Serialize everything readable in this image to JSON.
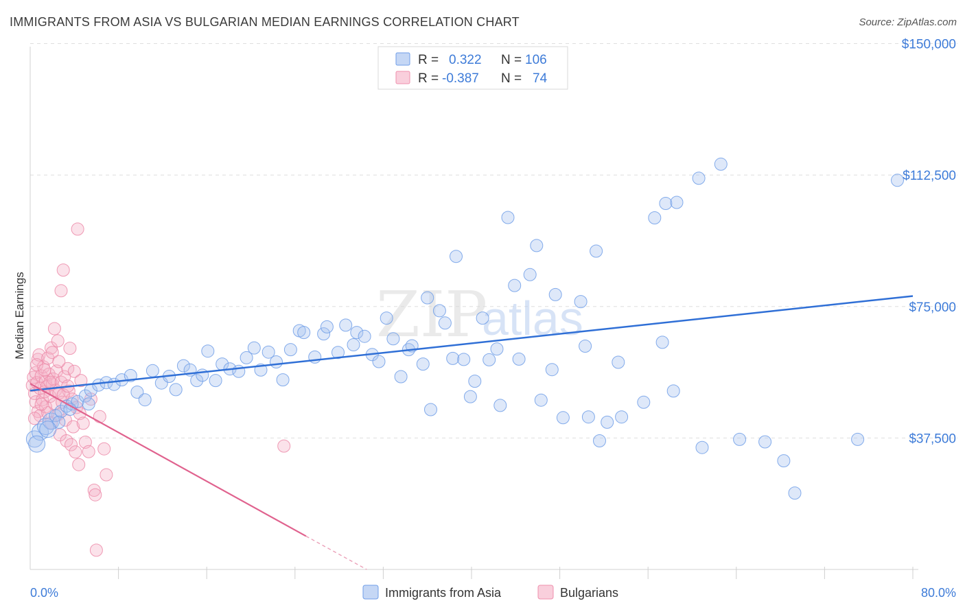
{
  "title": "IMMIGRANTS FROM ASIA VS BULGARIAN MEDIAN EARNINGS CORRELATION CHART",
  "source": "Source: ZipAtlas.com",
  "watermark": {
    "zip": "ZIP",
    "atlas": "atlas"
  },
  "legend": {
    "r_label": "R =",
    "n_label": "N =",
    "rows": [
      {
        "r": "0.322",
        "n": "106",
        "color": "#6f9ee8"
      },
      {
        "r": "-0.387",
        "n": "74",
        "color": "#ef8fac"
      }
    ]
  },
  "bottom_legend": [
    "Immigrants from Asia",
    "Bulgarians"
  ],
  "chart_data": {
    "type": "scatter",
    "ylabel": "Median Earnings",
    "xlabel": "",
    "x_tick_labels": {
      "min": "0.0%",
      "max": "80.0%"
    },
    "xlim": [
      0,
      80
    ],
    "ylim": [
      0,
      155000
    ],
    "y_ticks": [
      {
        "value": 37500,
        "label": "$37,500"
      },
      {
        "value": 75000,
        "label": "$75,000"
      },
      {
        "value": 112500,
        "label": "$112,500"
      },
      {
        "value": 150000,
        "label": "$150,000"
      }
    ],
    "grid": true,
    "series": [
      {
        "name": "Immigrants from Asia",
        "color": "#6f9ee8",
        "trend": {
          "x": [
            0,
            80
          ],
          "y": [
            51000,
            78000
          ]
        },
        "points": [
          [
            0.4,
            37200
          ],
          [
            0.9,
            39200
          ],
          [
            1.4,
            40800
          ],
          [
            1.9,
            42300
          ],
          [
            2.3,
            43900
          ],
          [
            2.8,
            45100
          ],
          [
            3.3,
            46600
          ],
          [
            3.8,
            47200
          ],
          [
            4.3,
            47900
          ],
          [
            5.0,
            49500
          ],
          [
            5.5,
            51100
          ],
          [
            6.2,
            52600
          ],
          [
            6.9,
            53300
          ],
          [
            7.6,
            52800
          ],
          [
            8.3,
            54100
          ],
          [
            9.1,
            55300
          ],
          [
            9.7,
            50600
          ],
          [
            10.4,
            48400
          ],
          [
            11.1,
            56700
          ],
          [
            11.9,
            53200
          ],
          [
            12.6,
            55100
          ],
          [
            13.2,
            51300
          ],
          [
            13.9,
            58100
          ],
          [
            14.5,
            56900
          ],
          [
            15.1,
            53900
          ],
          [
            15.6,
            55400
          ],
          [
            16.1,
            62300
          ],
          [
            16.8,
            53900
          ],
          [
            17.4,
            58600
          ],
          [
            18.1,
            57200
          ],
          [
            18.9,
            56500
          ],
          [
            19.6,
            60400
          ],
          [
            20.3,
            63200
          ],
          [
            20.9,
            56900
          ],
          [
            21.6,
            62000
          ],
          [
            22.3,
            59200
          ],
          [
            22.9,
            54100
          ],
          [
            23.6,
            62700
          ],
          [
            24.4,
            68100
          ],
          [
            24.8,
            67600
          ],
          [
            25.8,
            60600
          ],
          [
            26.6,
            67200
          ],
          [
            26.9,
            69200
          ],
          [
            27.9,
            61900
          ],
          [
            28.6,
            69700
          ],
          [
            29.3,
            64100
          ],
          [
            29.6,
            67600
          ],
          [
            30.3,
            66500
          ],
          [
            31.0,
            61300
          ],
          [
            31.6,
            59300
          ],
          [
            32.3,
            71700
          ],
          [
            32.9,
            65800
          ],
          [
            33.6,
            55000
          ],
          [
            34.3,
            62700
          ],
          [
            34.6,
            63800
          ],
          [
            35.6,
            58600
          ],
          [
            36.0,
            77500
          ],
          [
            36.3,
            45600
          ],
          [
            37.1,
            73800
          ],
          [
            37.6,
            70300
          ],
          [
            38.3,
            60200
          ],
          [
            38.6,
            89300
          ],
          [
            39.3,
            59900
          ],
          [
            39.9,
            49300
          ],
          [
            40.3,
            53700
          ],
          [
            41.0,
            71700
          ],
          [
            41.6,
            59800
          ],
          [
            42.3,
            62900
          ],
          [
            42.6,
            46800
          ],
          [
            43.3,
            100400
          ],
          [
            43.9,
            81000
          ],
          [
            44.3,
            60000
          ],
          [
            45.3,
            84100
          ],
          [
            45.9,
            92400
          ],
          [
            46.3,
            48300
          ],
          [
            47.3,
            57000
          ],
          [
            47.6,
            78400
          ],
          [
            48.3,
            43300
          ],
          [
            49.9,
            76400
          ],
          [
            50.3,
            63700
          ],
          [
            50.6,
            43500
          ],
          [
            51.3,
            90800
          ],
          [
            51.6,
            36700
          ],
          [
            52.3,
            42000
          ],
          [
            53.3,
            59100
          ],
          [
            53.6,
            43500
          ],
          [
            55.6,
            47700
          ],
          [
            56.6,
            100300
          ],
          [
            57.3,
            64800
          ],
          [
            57.6,
            104400
          ],
          [
            58.6,
            104700
          ],
          [
            58.3,
            50900
          ],
          [
            60.6,
            111600
          ],
          [
            60.9,
            34800
          ],
          [
            62.6,
            115600
          ],
          [
            64.3,
            37100
          ],
          [
            66.6,
            36400
          ],
          [
            68.3,
            31000
          ],
          [
            69.3,
            21800
          ],
          [
            78.6,
            111000
          ],
          [
            0.6,
            35800
          ],
          [
            2.6,
            42000
          ],
          [
            3.6,
            45700
          ],
          [
            5.3,
            47200
          ],
          [
            75.0,
            37100
          ],
          [
            1.6,
            40000
          ]
        ]
      },
      {
        "name": "Bulgarians",
        "color": "#ef8fac",
        "trend": {
          "x": [
            0,
            25
          ],
          "y": [
            53000,
            9500
          ]
        },
        "trend_dashed": {
          "x": [
            25,
            30.5
          ],
          "y": [
            9500,
            0
          ]
        },
        "points": [
          [
            0.2,
            52500
          ],
          [
            0.3,
            54800
          ],
          [
            0.4,
            50200
          ],
          [
            0.5,
            56100
          ],
          [
            0.5,
            47800
          ],
          [
            0.6,
            53300
          ],
          [
            0.7,
            59900
          ],
          [
            0.7,
            45100
          ],
          [
            0.8,
            61200
          ],
          [
            0.9,
            51600
          ],
          [
            0.9,
            43900
          ],
          [
            1.0,
            55200
          ],
          [
            1.1,
            48400
          ],
          [
            1.2,
            57800
          ],
          [
            1.3,
            50700
          ],
          [
            1.4,
            53600
          ],
          [
            1.4,
            46400
          ],
          [
            1.5,
            52100
          ],
          [
            1.6,
            60300
          ],
          [
            1.6,
            44700
          ],
          [
            1.7,
            55700
          ],
          [
            1.8,
            49400
          ],
          [
            1.9,
            63200
          ],
          [
            1.9,
            41800
          ],
          [
            2.0,
            52900
          ],
          [
            2.1,
            54300
          ],
          [
            2.2,
            47200
          ],
          [
            2.2,
            68700
          ],
          [
            2.3,
            51100
          ],
          [
            2.4,
            56600
          ],
          [
            2.5,
            44100
          ],
          [
            2.5,
            65200
          ],
          [
            2.6,
            50300
          ],
          [
            2.7,
            38400
          ],
          [
            2.8,
            53400
          ],
          [
            2.8,
            79500
          ],
          [
            2.9,
            47700
          ],
          [
            3.0,
            85400
          ],
          [
            3.1,
            55000
          ],
          [
            3.2,
            42600
          ],
          [
            3.3,
            36700
          ],
          [
            3.4,
            57300
          ],
          [
            3.5,
            50900
          ],
          [
            3.6,
            63100
          ],
          [
            3.7,
            35600
          ],
          [
            3.8,
            48600
          ],
          [
            3.9,
            40700
          ],
          [
            4.0,
            56500
          ],
          [
            4.1,
            33500
          ],
          [
            4.2,
            46200
          ],
          [
            4.3,
            97100
          ],
          [
            4.4,
            29900
          ],
          [
            4.5,
            44500
          ],
          [
            4.6,
            53900
          ],
          [
            4.8,
            41700
          ],
          [
            5.0,
            36300
          ],
          [
            5.3,
            33600
          ],
          [
            5.5,
            48600
          ],
          [
            5.8,
            22600
          ],
          [
            5.9,
            21300
          ],
          [
            6.0,
            5500
          ],
          [
            6.3,
            43600
          ],
          [
            6.7,
            34400
          ],
          [
            6.9,
            27000
          ],
          [
            23.0,
            35200
          ],
          [
            0.4,
            43100
          ],
          [
            0.6,
            58400
          ],
          [
            1.0,
            47100
          ],
          [
            1.3,
            56900
          ],
          [
            1.8,
            53400
          ],
          [
            2.0,
            61900
          ],
          [
            2.6,
            59300
          ],
          [
            3.0,
            49800
          ],
          [
            3.4,
            52300
          ]
        ]
      }
    ]
  }
}
